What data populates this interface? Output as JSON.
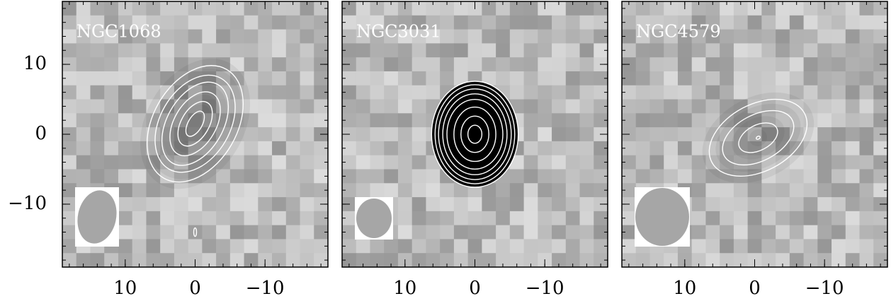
{
  "chart_data": [
    {
      "type": "image",
      "title": "NGC1068",
      "xlim": [
        19,
        -19
      ],
      "ylim": [
        -19,
        19
      ],
      "xticks": [
        10,
        0,
        {
          "value": -10,
          "label": "−10"
        }
      ],
      "yticks": [
        {
          "value": -10,
          "label": "−10"
        },
        0,
        10
      ]
    },
    {
      "type": "image",
      "title": "NGC3031",
      "xlim": [
        19,
        -19
      ],
      "ylim": [
        -19,
        19
      ],
      "xticks": [
        10,
        0,
        {
          "value": -10,
          "label": "−10"
        }
      ]
    },
    {
      "type": "image",
      "title": "NGC4579",
      "xlim": [
        19,
        -19
      ],
      "ylim": [
        -19,
        19
      ],
      "xticks": [
        10,
        0,
        {
          "value": -10,
          "label": "−10"
        }
      ]
    }
  ]
}
